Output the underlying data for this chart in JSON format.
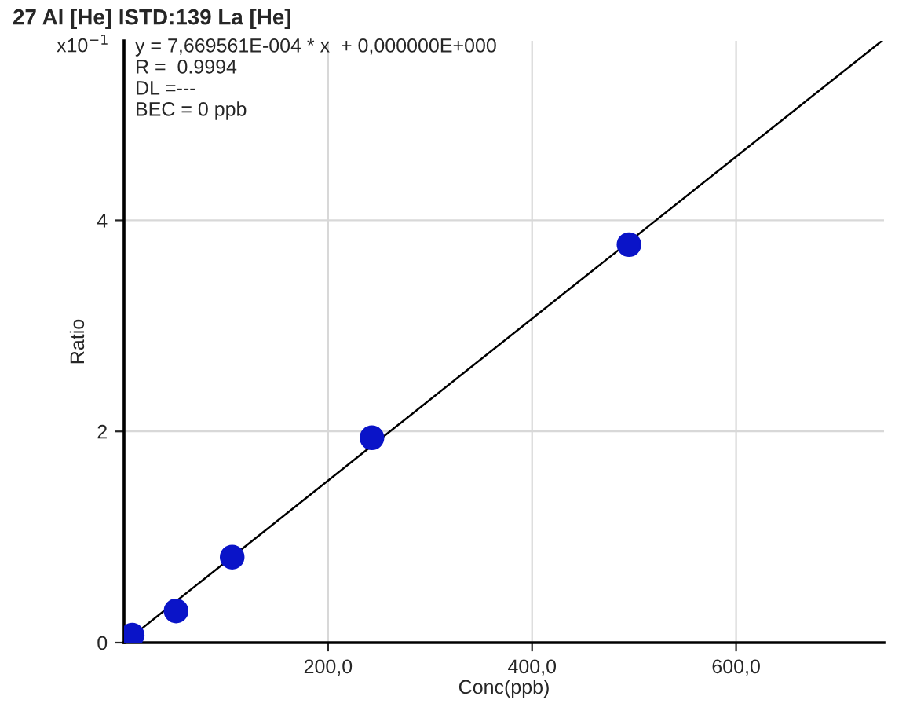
{
  "chart_data": {
    "type": "scatter",
    "title": "27 Al [He] ISTD:139 La [He]",
    "xlabel": "Conc(ppb)",
    "ylabel": "Ratio",
    "annotations": [
      "x10$^{−1}$",
      "y = 7,669561E-004 * x  + 0,000000E+000",
      "R =  0.9994",
      "DL =---",
      "BEC = 0 ppb"
    ],
    "series": [
      {
        "type": "line",
        "color": "#000000",
        "x": [
          0,
          743
        ],
        "values": [
          0,
          5.7
        ],
        "marker": "none",
        "line_style": "solid"
      },
      {
        "color": "#0a14c8",
        "x": [
          8,
          51,
          106,
          243,
          495
        ],
        "values": [
          0.07,
          0.3,
          0.81,
          1.94,
          3.77
        ],
        "marker": "circle"
      }
    ],
    "xlim": [
      0,
      745
    ],
    "ylim": [
      0,
      5.7
    ],
    "xticks": [
      {
        "value": 200,
        "label": "200,0"
      },
      {
        "value": 400,
        "label": "400,0"
      },
      {
        "value": 600,
        "label": "600,0"
      }
    ],
    "yticks": [
      0,
      2,
      4
    ],
    "grid": true,
    "legend": false
  }
}
